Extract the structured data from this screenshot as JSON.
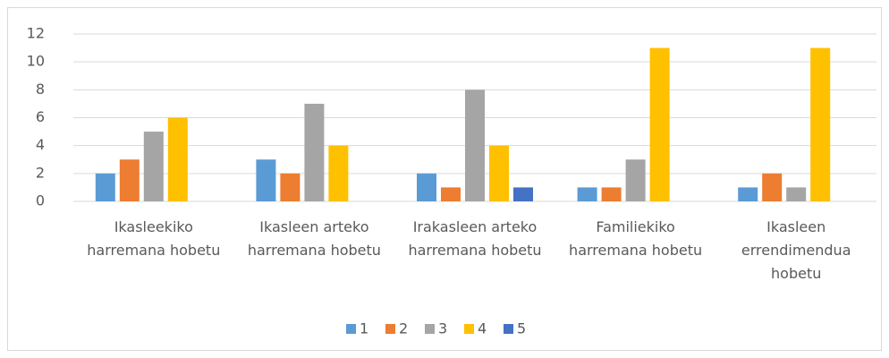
{
  "chart_data": {
    "type": "bar",
    "categories": [
      "Ikasleekiko harremana hobetu",
      "Ikasleen arteko harremana hobetu",
      "Irakasleen arteko harremana hobetu",
      "Familiekiko harremana hobetu",
      "Ikasleen errendimendua hobetu"
    ],
    "series": [
      {
        "name": "1",
        "color": "#5b9bd5",
        "values": [
          2,
          3,
          2,
          1,
          1
        ]
      },
      {
        "name": "2",
        "color": "#ed7d31",
        "values": [
          3,
          2,
          1,
          1,
          2
        ]
      },
      {
        "name": "3",
        "color": "#a5a5a5",
        "values": [
          5,
          7,
          8,
          3,
          1
        ]
      },
      {
        "name": "4",
        "color": "#ffc000",
        "values": [
          6,
          4,
          4,
          11,
          11
        ]
      },
      {
        "name": "5",
        "color": "#4472c4",
        "values": [
          0,
          0,
          1,
          0,
          0
        ]
      }
    ],
    "ylim": [
      0,
      12
    ],
    "yticks": [
      0,
      2,
      4,
      6,
      8,
      10,
      12
    ],
    "grid": true,
    "legend": "bottom"
  }
}
